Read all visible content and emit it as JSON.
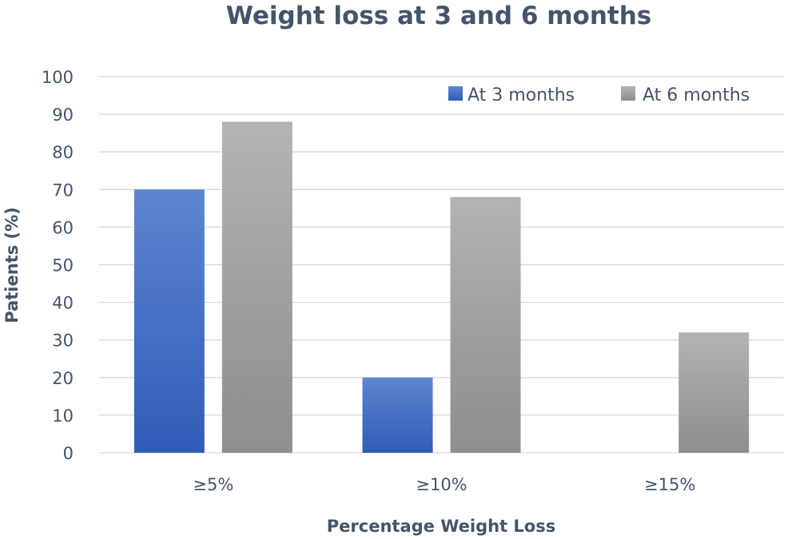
{
  "chart_data": {
    "type": "bar",
    "title": "Weight loss at 3 and 6 months",
    "xlabel": "Percentage Weight Loss",
    "ylabel": "Patients (%)",
    "categories": [
      "≥5%",
      "≥10%",
      "≥15%"
    ],
    "series": [
      {
        "name": "At 3 months",
        "values": [
          70,
          20,
          0
        ],
        "color": "#4472c4"
      },
      {
        "name": "At 6 months",
        "values": [
          88,
          68,
          32
        ],
        "color": "#a5a5a5"
      }
    ],
    "ylim": [
      0,
      100
    ],
    "yticks": [
      "0",
      "10",
      "20",
      "30",
      "40",
      "50",
      "60",
      "70",
      "80",
      "90",
      "100"
    ],
    "grid": true,
    "legend_position": "top-right"
  }
}
